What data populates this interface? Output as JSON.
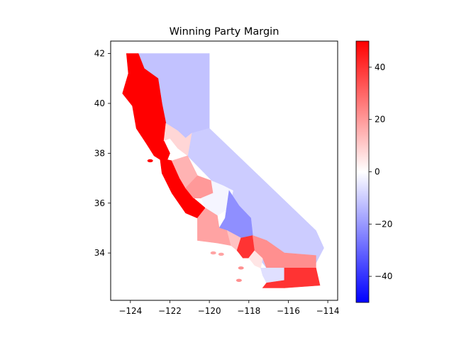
{
  "chart_data": {
    "type": "choropleth",
    "title": "Winning Party Margin",
    "xlim": [
      -125,
      -113.5
    ],
    "ylim": [
      32.1,
      42.5
    ],
    "x_ticks": [
      -124,
      -122,
      -120,
      -118,
      -116,
      -114
    ],
    "x_tick_labels": [
      "−124",
      "−122",
      "−120",
      "−118",
      "−116",
      "−114"
    ],
    "y_ticks": [
      34,
      36,
      38,
      40,
      42
    ],
    "y_tick_labels": [
      "34",
      "36",
      "38",
      "40",
      "42"
    ],
    "colorbar": {
      "colormap": "bwr",
      "range": [
        -50,
        50
      ],
      "ticks": [
        -40,
        -20,
        0,
        20,
        40
      ],
      "tick_labels": [
        "−40",
        "−20",
        "0",
        "20",
        "40"
      ],
      "low_color": "#0000ff",
      "mid_color": "#ffffff",
      "high_color": "#ff0000"
    },
    "regions": [
      {
        "id": "northeast",
        "margin": -12,
        "poly": [
          [
            -123.6,
            42
          ],
          [
            -120,
            42
          ],
          [
            -120,
            39
          ],
          [
            -121.2,
            38.6
          ],
          [
            -121.6,
            38.9
          ],
          [
            -122.2,
            39.2
          ],
          [
            -122.4,
            40
          ],
          [
            -122.6,
            41
          ],
          [
            -123.3,
            41.4
          ]
        ]
      },
      {
        "id": "eastern-sierra",
        "margin": -10,
        "poly": [
          [
            -120,
            39
          ],
          [
            -114.6,
            34.9
          ],
          [
            -114.2,
            34.2
          ],
          [
            -114.6,
            33.6
          ],
          [
            -117.1,
            33.4
          ],
          [
            -117.8,
            34.1
          ],
          [
            -118.5,
            35.9
          ],
          [
            -119.5,
            36.6
          ],
          [
            -121.1,
            37.9
          ],
          [
            -121.4,
            38.5
          ],
          [
            -120.9,
            38.8
          ]
        ]
      },
      {
        "id": "north-coast",
        "margin": 50,
        "poly": [
          [
            -124.2,
            42
          ],
          [
            -123.6,
            42
          ],
          [
            -123.3,
            41.4
          ],
          [
            -122.6,
            41
          ],
          [
            -122.4,
            40
          ],
          [
            -122.2,
            39.2
          ],
          [
            -122.3,
            38.5
          ],
          [
            -122,
            38
          ],
          [
            -122.2,
            37.6
          ],
          [
            -122.8,
            37.9
          ],
          [
            -123.2,
            38.4
          ],
          [
            -123.7,
            39
          ],
          [
            -123.9,
            39.9
          ],
          [
            -124.4,
            40.4
          ],
          [
            -124.1,
            41.2
          ]
        ]
      },
      {
        "id": "bay-area-coast",
        "margin": 50,
        "poly": [
          [
            -122.5,
            37.8
          ],
          [
            -121.9,
            37.7
          ],
          [
            -121.5,
            37
          ],
          [
            -120.8,
            36.2
          ],
          [
            -120.2,
            35.8
          ],
          [
            -120.6,
            35.4
          ],
          [
            -121.2,
            35.6
          ],
          [
            -121.9,
            36.4
          ],
          [
            -122.4,
            37.2
          ]
        ]
      },
      {
        "id": "sacramento-valley",
        "margin": 8,
        "poly": [
          [
            -122.2,
            39.2
          ],
          [
            -121.6,
            38.9
          ],
          [
            -121.2,
            38.6
          ],
          [
            -120.9,
            38.8
          ],
          [
            -121.1,
            37.9
          ],
          [
            -121.6,
            38.2
          ],
          [
            -122,
            38.6
          ],
          [
            -122.3,
            38.5
          ]
        ]
      },
      {
        "id": "east-bay",
        "margin": 15,
        "poly": [
          [
            -121.9,
            37.7
          ],
          [
            -121.1,
            37.9
          ],
          [
            -120.6,
            37.1
          ],
          [
            -121.2,
            36.6
          ],
          [
            -121.5,
            37
          ]
        ]
      },
      {
        "id": "central-valley-north",
        "margin": 20,
        "poly": [
          [
            -121.2,
            36.6
          ],
          [
            -120.6,
            37.1
          ],
          [
            -119.9,
            36.9
          ],
          [
            -119.8,
            36.4
          ],
          [
            -120.4,
            36.2
          ],
          [
            -120.8,
            36.2
          ]
        ]
      },
      {
        "id": "fresno-area",
        "margin": -2,
        "poly": [
          [
            -120.4,
            36.2
          ],
          [
            -119.8,
            36.4
          ],
          [
            -119.9,
            36.9
          ],
          [
            -119.3,
            36.7
          ],
          [
            -118.8,
            36.5
          ],
          [
            -119.0,
            35.8
          ],
          [
            -119.6,
            35.5
          ],
          [
            -120.2,
            35.8
          ]
        ]
      },
      {
        "id": "tulare-kern",
        "margin": -22,
        "poly": [
          [
            -119,
            36.5
          ],
          [
            -118.5,
            35.9
          ],
          [
            -117.9,
            35.4
          ],
          [
            -117.8,
            34.7
          ],
          [
            -118.4,
            34.6
          ],
          [
            -119.1,
            34.9
          ],
          [
            -119.5,
            35.0
          ],
          [
            -119.2,
            35.4
          ]
        ]
      },
      {
        "id": "central-coast",
        "margin": 18,
        "poly": [
          [
            -120.6,
            35.4
          ],
          [
            -120.2,
            35.8
          ],
          [
            -119.6,
            35.5
          ],
          [
            -119.5,
            35.0
          ],
          [
            -119.1,
            34.9
          ],
          [
            -118.9,
            34.3
          ],
          [
            -119.6,
            34.4
          ],
          [
            -120.6,
            34.5
          ]
        ]
      },
      {
        "id": "ventura",
        "margin": 12,
        "poly": [
          [
            -119.1,
            34.9
          ],
          [
            -118.4,
            34.6
          ],
          [
            -118.6,
            34.1
          ],
          [
            -118.9,
            34.3
          ]
        ]
      },
      {
        "id": "los-angeles",
        "margin": 40,
        "poly": [
          [
            -118.6,
            34.1
          ],
          [
            -118.4,
            34.6
          ],
          [
            -117.8,
            34.7
          ],
          [
            -117.7,
            34.1
          ],
          [
            -117.9,
            33.8
          ],
          [
            -118.3,
            33.8
          ],
          [
            -118.5,
            34.0
          ]
        ]
      },
      {
        "id": "orange",
        "margin": 5,
        "poly": [
          [
            -118.0,
            33.8
          ],
          [
            -117.7,
            34.1
          ],
          [
            -117.3,
            33.8
          ],
          [
            -117.4,
            33.4
          ],
          [
            -117.7,
            33.5
          ]
        ]
      },
      {
        "id": "inland-empire",
        "margin": 22,
        "poly": [
          [
            -117.7,
            34.1
          ],
          [
            -117.8,
            34.7
          ],
          [
            -117.1,
            34.5
          ],
          [
            -116.2,
            34.0
          ],
          [
            -114.6,
            33.9
          ],
          [
            -114.6,
            33.4
          ],
          [
            -116.2,
            33.4
          ],
          [
            -117.1,
            33.4
          ],
          [
            -117.3,
            33.8
          ]
        ]
      },
      {
        "id": "san-diego-north",
        "margin": -6,
        "poly": [
          [
            -117.4,
            33.4
          ],
          [
            -117.1,
            33.4
          ],
          [
            -116.2,
            33.4
          ],
          [
            -116.2,
            32.9
          ],
          [
            -117.1,
            32.8
          ],
          [
            -117.3,
            33.1
          ]
        ]
      },
      {
        "id": "imperial",
        "margin": 40,
        "poly": [
          [
            -116.2,
            33.4
          ],
          [
            -114.6,
            33.4
          ],
          [
            -114.4,
            32.7
          ],
          [
            -116.2,
            32.6
          ]
        ]
      },
      {
        "id": "san-diego-south",
        "margin": 40,
        "poly": [
          [
            -117.3,
            32.6
          ],
          [
            -116.2,
            32.6
          ],
          [
            -116.2,
            32.9
          ],
          [
            -117.1,
            32.8
          ]
        ]
      }
    ],
    "islands": [
      {
        "id": "channel-islands-west",
        "margin": 18,
        "center": [
          -119.8,
          34.0
        ]
      },
      {
        "id": "channel-islands-east",
        "margin": 18,
        "center": [
          -119.4,
          33.95
        ]
      },
      {
        "id": "santa-catalina",
        "margin": 22,
        "center": [
          -118.4,
          33.4
        ]
      },
      {
        "id": "san-clemente",
        "margin": 22,
        "center": [
          -118.5,
          32.9
        ]
      },
      {
        "id": "farallon",
        "margin": 50,
        "center": [
          -123.0,
          37.7
        ]
      }
    ]
  }
}
